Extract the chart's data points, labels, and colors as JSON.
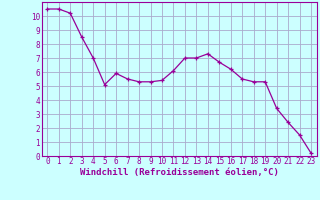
{
  "x": [
    0,
    1,
    2,
    3,
    4,
    5,
    6,
    7,
    8,
    9,
    10,
    11,
    12,
    13,
    14,
    15,
    16,
    17,
    18,
    19,
    20,
    21,
    22,
    23
  ],
  "y": [
    10.5,
    10.5,
    10.2,
    8.5,
    7.0,
    5.1,
    5.9,
    5.5,
    5.3,
    5.3,
    5.4,
    6.1,
    7.0,
    7.0,
    7.3,
    6.7,
    6.2,
    5.5,
    5.3,
    5.3,
    3.4,
    2.4,
    1.5,
    0.2
  ],
  "line_color": "#990099",
  "marker": "+",
  "marker_color": "#990099",
  "background_color": "#ccffff",
  "grid_color": "#aaaacc",
  "xlabel": "Windchill (Refroidissement éolien,°C)",
  "xlabel_color": "#990099",
  "tick_color": "#990099",
  "ylim": [
    0,
    11
  ],
  "xlim": [
    -0.5,
    23.5
  ],
  "yticks": [
    0,
    1,
    2,
    3,
    4,
    5,
    6,
    7,
    8,
    9,
    10
  ],
  "xticks": [
    0,
    1,
    2,
    3,
    4,
    5,
    6,
    7,
    8,
    9,
    10,
    11,
    12,
    13,
    14,
    15,
    16,
    17,
    18,
    19,
    20,
    21,
    22,
    23
  ],
  "spine_color": "#990099",
  "tick_fontsize": 5.5,
  "xlabel_fontsize": 6.5
}
